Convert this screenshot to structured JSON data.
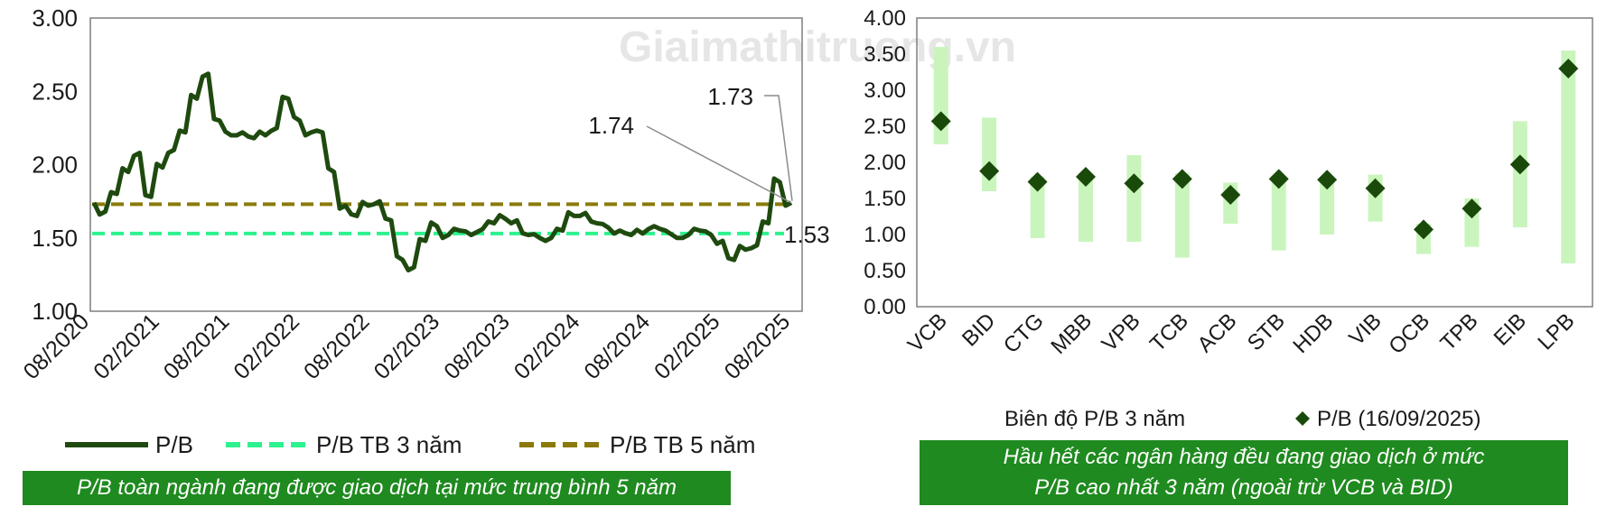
{
  "watermark": "Giaimathitruong.vn",
  "chart_data": [
    {
      "type": "line",
      "title": "",
      "xlabel": "",
      "ylabel": "",
      "ylim": [
        1.0,
        3.0
      ],
      "yticks": [
        "1.00",
        "1.50",
        "2.00",
        "2.50",
        "3.00"
      ],
      "xticks": [
        "08/2020",
        "02/2021",
        "08/2021",
        "02/2022",
        "08/2022",
        "02/2023",
        "08/2023",
        "02/2024",
        "08/2024",
        "02/2025",
        "08/2025"
      ],
      "x_range": [
        "08/2020",
        "09/2025"
      ],
      "grid": false,
      "legend_position": "bottom",
      "series": [
        {
          "name": "P/B",
          "color": "#1f4a0f",
          "style": "solid",
          "points": [
            [
              "2020-08",
              1.74
            ],
            [
              "2020-09",
              1.68
            ],
            [
              "2020-10",
              1.8
            ],
            [
              "2020-11",
              1.95
            ],
            [
              "2020-12",
              2.08
            ],
            [
              "2021-01",
              1.78
            ],
            [
              "2021-02",
              1.98
            ],
            [
              "2021-03",
              2.1
            ],
            [
              "2021-04",
              2.22
            ],
            [
              "2021-05",
              2.45
            ],
            [
              "2021-06",
              2.62
            ],
            [
              "2021-07",
              2.3
            ],
            [
              "2021-08",
              2.2
            ],
            [
              "2021-09",
              2.22
            ],
            [
              "2021-10",
              2.18
            ],
            [
              "2021-11",
              2.2
            ],
            [
              "2021-12",
              2.25
            ],
            [
              "2022-01",
              2.45
            ],
            [
              "2022-02",
              2.3
            ],
            [
              "2022-03",
              2.22
            ],
            [
              "2022-04",
              2.22
            ],
            [
              "2022-05",
              1.95
            ],
            [
              "2022-06",
              1.72
            ],
            [
              "2022-07",
              1.65
            ],
            [
              "2022-08",
              1.72
            ],
            [
              "2022-09",
              1.75
            ],
            [
              "2022-10",
              1.62
            ],
            [
              "2022-11",
              1.35
            ],
            [
              "2022-12",
              1.3
            ],
            [
              "2023-01",
              1.48
            ],
            [
              "2023-02",
              1.58
            ],
            [
              "2023-03",
              1.52
            ],
            [
              "2023-04",
              1.55
            ],
            [
              "2023-05",
              1.52
            ],
            [
              "2023-06",
              1.56
            ],
            [
              "2023-07",
              1.6
            ],
            [
              "2023-08",
              1.63
            ],
            [
              "2023-09",
              1.62
            ],
            [
              "2023-10",
              1.52
            ],
            [
              "2023-11",
              1.5
            ],
            [
              "2023-12",
              1.5
            ],
            [
              "2024-01",
              1.55
            ],
            [
              "2024-02",
              1.65
            ],
            [
              "2024-03",
              1.67
            ],
            [
              "2024-04",
              1.6
            ],
            [
              "2024-05",
              1.57
            ],
            [
              "2024-06",
              1.55
            ],
            [
              "2024-07",
              1.52
            ],
            [
              "2024-08",
              1.53
            ],
            [
              "2024-09",
              1.58
            ],
            [
              "2024-10",
              1.55
            ],
            [
              "2024-11",
              1.5
            ],
            [
              "2024-12",
              1.52
            ],
            [
              "2025-01",
              1.55
            ],
            [
              "2025-02",
              1.52
            ],
            [
              "2025-03",
              1.48
            ],
            [
              "2025-04",
              1.35
            ],
            [
              "2025-05",
              1.42
            ],
            [
              "2025-06",
              1.45
            ],
            [
              "2025-07",
              1.6
            ],
            [
              "2025-08",
              1.88
            ],
            [
              "2025-09",
              1.74
            ]
          ]
        },
        {
          "name": "P/B TB 3 năm",
          "color": "#2ef28f",
          "style": "dashed",
          "value": 1.53
        },
        {
          "name": "P/B TB 5 năm",
          "color": "#8a7a0a",
          "style": "dashed",
          "value": 1.73
        }
      ],
      "annotations": [
        "1.74",
        "1.73",
        "1.53"
      ]
    },
    {
      "type": "range-dot",
      "title": "",
      "xlabel": "",
      "ylabel": "",
      "ylim": [
        0.0,
        4.0
      ],
      "yticks": [
        "0.00",
        "0.50",
        "1.00",
        "1.50",
        "2.00",
        "2.50",
        "3.00",
        "3.50",
        "4.00"
      ],
      "grid": false,
      "legend_position": "bottom",
      "categories": [
        "VCB",
        "BID",
        "CTG",
        "MBB",
        "VPB",
        "TCB",
        "ACB",
        "STB",
        "HDB",
        "VIB",
        "OCB",
        "TPB",
        "EIB",
        "LPB"
      ],
      "series": [
        {
          "name": "Biên độ P/B 3 năm",
          "color": "#c9f5bd",
          "low": [
            2.25,
            1.6,
            0.95,
            0.9,
            0.9,
            0.68,
            1.15,
            0.78,
            1.0,
            1.18,
            0.73,
            0.83,
            1.1,
            0.6
          ],
          "high": [
            3.6,
            2.62,
            1.8,
            1.85,
            2.1,
            1.85,
            1.72,
            1.82,
            1.8,
            1.83,
            1.15,
            1.5,
            2.57,
            3.55
          ]
        },
        {
          "name": "P/B (16/09/2025)",
          "color": "#1a4a0a",
          "values": [
            2.57,
            1.88,
            1.73,
            1.8,
            1.71,
            1.77,
            1.55,
            1.77,
            1.76,
            1.64,
            1.07,
            1.36,
            1.97,
            3.3
          ]
        }
      ]
    }
  ],
  "captions": {
    "left": "P/B toàn ngành đang được giao dịch tại mức trung bình 5 năm",
    "right_line1": "Hầu hết các ngân hàng đều đang giao dịch ở mức",
    "right_line2": "P/B cao nhất 3 năm (ngoài trừ VCB và BID)"
  }
}
